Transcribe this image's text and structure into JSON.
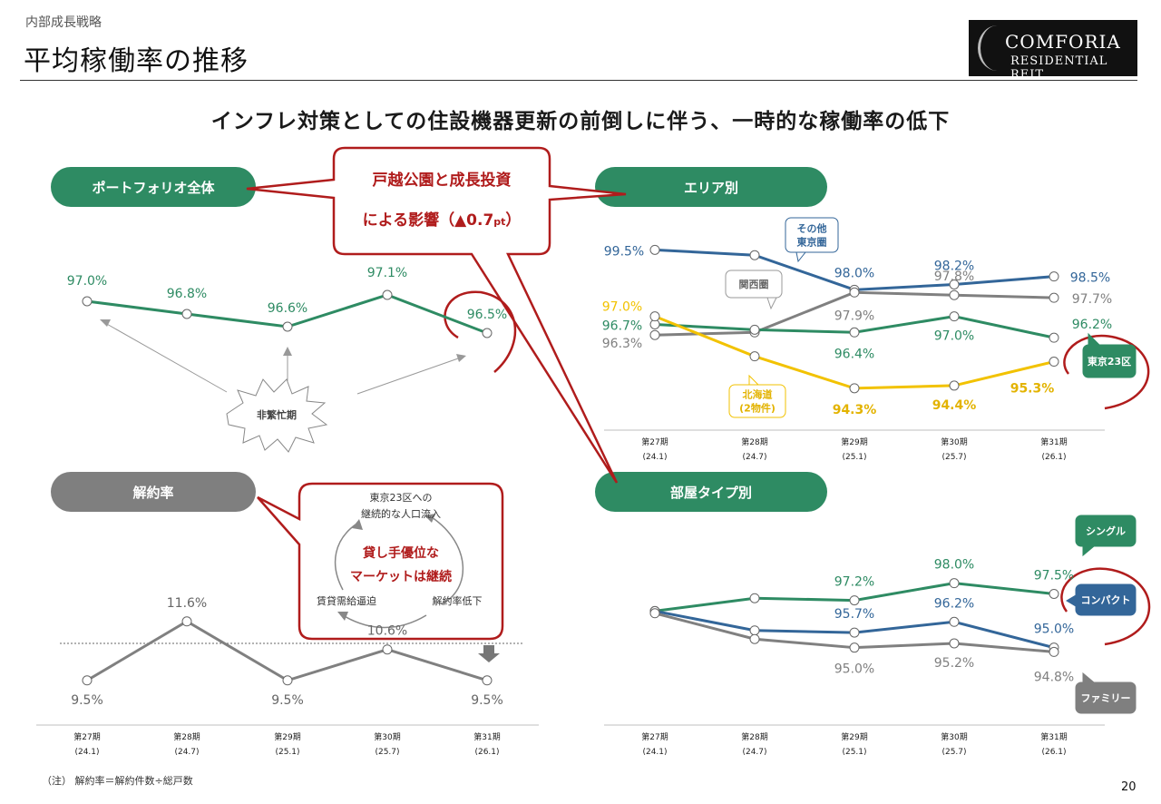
{
  "header": {
    "section": "内部成長戦略",
    "title": "平均稼働率の推移",
    "logo_line1": "COMFORIA",
    "logo_line2": "RESIDENTIAL REIT",
    "headline": "インフレ対策としての住設機器更新の前倒しに伴う、一時的な稼働率の低下"
  },
  "pills": {
    "portfolio": "ポートフォリオ全体",
    "area": "エリア別",
    "cancel": "解約率",
    "room": "部屋タイプ別"
  },
  "callouts": {
    "impact_line1": "戸越公園と成長投資",
    "impact_line2a": "による影響（",
    "impact_line2b": "▲0.7",
    "impact_line2c": "pt",
    "impact_line2d": "）",
    "busy": "非繁忙期",
    "cycle_top1": "東京23区への",
    "cycle_top2": "継続的な人口流入",
    "cycle_center1": "貸し手優位な",
    "cycle_center2": "マーケットは継続",
    "cycle_left": "賃貸需給逼迫",
    "cycle_right": "解約率低下"
  },
  "colors": {
    "green": "#2e8b63",
    "blue": "#336699",
    "grey": "#808080",
    "yellow": "#f2c200",
    "red": "#b01c1c",
    "grey_pill": "#7f7f7f"
  },
  "periods": [
    {
      "name": "第27期",
      "date": "(24.1)"
    },
    {
      "name": "第28期",
      "date": "(24.7)"
    },
    {
      "name": "第29期",
      "date": "(25.1)"
    },
    {
      "name": "第30期",
      "date": "(25.7)"
    },
    {
      "name": "第31期",
      "date": "(26.1)"
    }
  ],
  "chart_data": [
    {
      "id": "portfolio",
      "type": "line",
      "title": "ポートフォリオ全体",
      "categories": [
        "第27期(24.1)",
        "第28期(24.7)",
        "第29期(25.1)",
        "第30期(25.7)",
        "第31期(26.1)"
      ],
      "series": [
        {
          "values": [
            97.0,
            96.8,
            96.6,
            97.1,
            96.5
          ],
          "labels": [
            "97.0%",
            "96.8%",
            "96.6%",
            "97.1%",
            "96.5%"
          ],
          "color": "#2e8b63"
        }
      ],
      "ylim": [
        95.6,
        97.6
      ]
    },
    {
      "id": "area",
      "type": "line",
      "title": "エリア別",
      "categories": [
        "第27期(24.1)",
        "第28期(24.7)",
        "第29期(25.1)",
        "第30期(25.7)",
        "第31期(26.1)"
      ],
      "series": [
        {
          "name": "その他東京圏",
          "name_lines": [
            "その他",
            "東京圏"
          ],
          "values": [
            99.5,
            99.3,
            98.0,
            98.2,
            98.5
          ],
          "labels": [
            "99.5%",
            "",
            "98.0%",
            "98.2%",
            "98.5%"
          ],
          "color": "#336699"
        },
        {
          "name": "関西圏",
          "name_lines": [
            "関西圏"
          ],
          "values": [
            96.3,
            96.4,
            97.9,
            97.8,
            97.7
          ],
          "labels": [
            "96.3%",
            "",
            "97.9%",
            "97.8%",
            "97.7%"
          ],
          "color": "#808080"
        },
        {
          "name": "東京23区",
          "name_lines": [
            "東京23区"
          ],
          "values": [
            96.7,
            96.5,
            96.4,
            97.0,
            96.2
          ],
          "labels": [
            "96.7%",
            "",
            "96.4%",
            "97.0%",
            "96.2%"
          ],
          "color": "#2e8b63"
        },
        {
          "name": "北海道(2物件)",
          "name_lines": [
            "北海道",
            "(2物件)"
          ],
          "values": [
            97.0,
            95.5,
            94.3,
            94.4,
            95.3
          ],
          "labels": [
            "97.0%",
            "",
            "94.3%",
            "94.4%",
            "95.3%"
          ],
          "color": "#f2c200"
        }
      ],
      "ylim": [
        93.0,
        100.5
      ]
    },
    {
      "id": "cancel",
      "type": "line",
      "title": "解約率",
      "categories": [
        "第27期(24.1)",
        "第28期(24.7)",
        "第29期(25.1)",
        "第30期(25.7)",
        "第31期(26.1)"
      ],
      "series": [
        {
          "values": [
            9.5,
            11.6,
            9.5,
            10.6,
            9.5
          ],
          "labels": [
            "9.5%",
            "11.6%",
            "9.5%",
            "10.6%",
            "9.5%"
          ],
          "color": "#808080"
        }
      ],
      "ylim": [
        8.2,
        12.4
      ]
    },
    {
      "id": "room",
      "type": "line",
      "title": "部屋タイプ別",
      "categories": [
        "第27期(24.1)",
        "第28期(24.7)",
        "第29期(25.1)",
        "第30期(25.7)",
        "第31期(26.1)"
      ],
      "series": [
        {
          "name": "シングル",
          "values": [
            96.7,
            97.3,
            97.2,
            98.0,
            97.5
          ],
          "labels": [
            "",
            "",
            "97.2%",
            "98.0%",
            "97.5%"
          ],
          "color": "#2e8b63"
        },
        {
          "name": "コンパクト",
          "values": [
            96.7,
            95.8,
            95.7,
            96.2,
            95.0
          ],
          "labels": [
            "",
            "",
            "95.7%",
            "96.2%",
            "95.0%"
          ],
          "color": "#336699"
        },
        {
          "name": "ファミリー",
          "values": [
            96.6,
            95.4,
            95.0,
            95.2,
            94.8
          ],
          "labels": [
            "",
            "",
            "95.0%",
            "95.2%",
            "94.8%"
          ],
          "color": "#808080"
        }
      ],
      "ylim": [
        92.2,
        99.8
      ]
    }
  ],
  "footer": {
    "note": "（注） 解約率＝解約件数÷総戸数",
    "page_number": "20"
  }
}
